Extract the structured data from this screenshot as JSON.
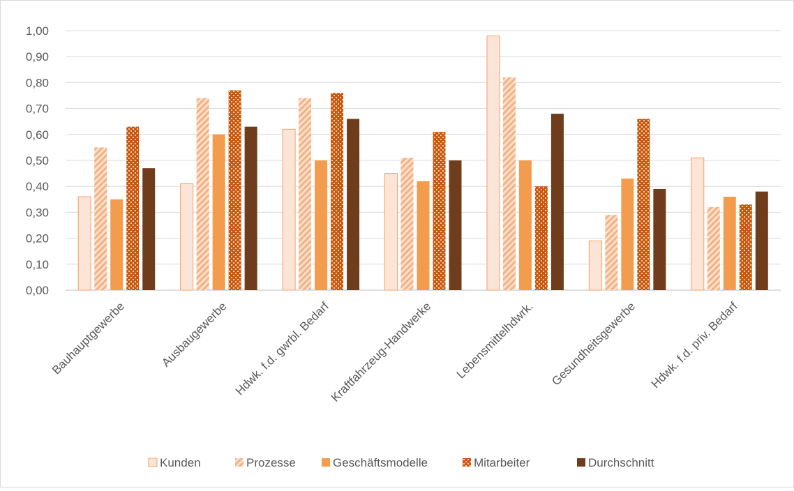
{
  "chart_data": {
    "type": "bar",
    "title": "",
    "xlabel": "",
    "ylabel": "",
    "ylim": [
      0,
      1.0
    ],
    "yticks": [
      "0,00",
      "0,10",
      "0,20",
      "0,30",
      "0,40",
      "0,50",
      "0,60",
      "0,70",
      "0,80",
      "0,90",
      "1,00"
    ],
    "grid": true,
    "legend_position": "bottom",
    "categories": [
      "Bauhauptgewerbe",
      "Ausbaugewerbe",
      "Hdwk. f.d. gwrbl. Bedarf",
      "Kraftfahrzeug-Handwerke",
      "Lebensmittelhdwrk.",
      "Gesundheitsgewerbe",
      "Hdwk. f.d. priv. Bedarf"
    ],
    "series": [
      {
        "name": "Kunden",
        "values": [
          0.36,
          0.41,
          0.62,
          0.45,
          0.98,
          0.19,
          0.51
        ],
        "color": "#FCE4D6",
        "stroke": "#F4A069",
        "pattern": "solid"
      },
      {
        "name": "Prozesse",
        "values": [
          0.55,
          0.74,
          0.74,
          0.51,
          0.82,
          0.29,
          0.32
        ],
        "color": "#F4B183",
        "stroke": "none",
        "pattern": "diagonal"
      },
      {
        "name": "Geschäftsmodelle",
        "values": [
          0.35,
          0.6,
          0.5,
          0.42,
          0.5,
          0.43,
          0.36
        ],
        "color": "#F39C4E",
        "stroke": "none",
        "pattern": "solid"
      },
      {
        "name": "Mitarbeiter",
        "values": [
          0.63,
          0.77,
          0.76,
          0.61,
          0.4,
          0.66,
          0.33
        ],
        "color": "#C65911",
        "stroke": "none",
        "pattern": "checker"
      },
      {
        "name": "Durchschnitt",
        "values": [
          0.47,
          0.63,
          0.66,
          0.5,
          0.68,
          0.39,
          0.38
        ],
        "color": "#6F3D1C",
        "stroke": "none",
        "pattern": "solid"
      }
    ]
  }
}
